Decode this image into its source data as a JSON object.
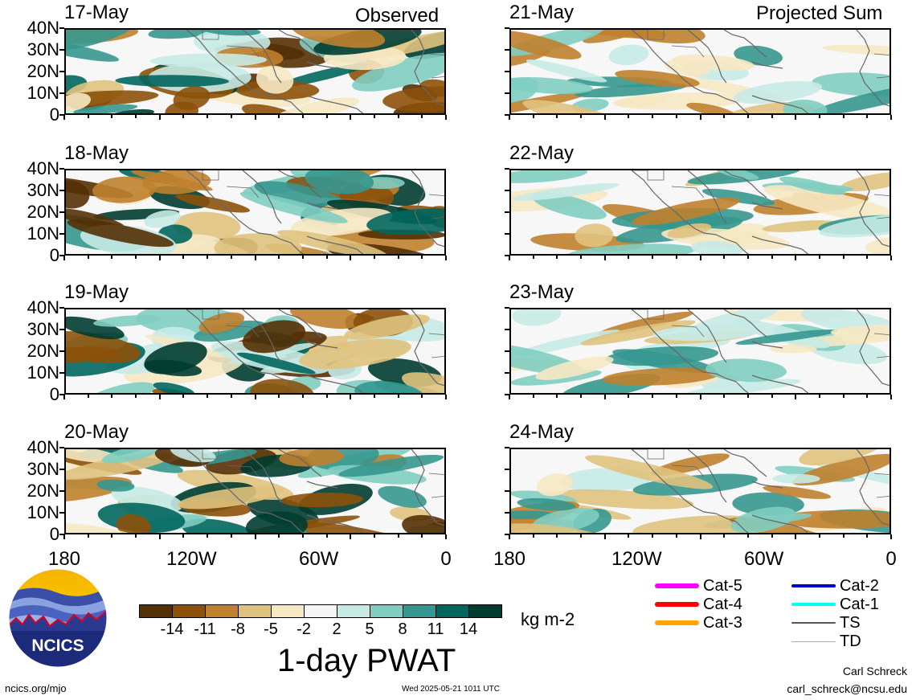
{
  "columns": {
    "left_title": "Observed",
    "right_title": "Projected Sum"
  },
  "panels_left": [
    "17-May",
    "18-May",
    "19-May",
    "20-May"
  ],
  "panels_right": [
    "21-May",
    "22-May",
    "23-May",
    "24-May"
  ],
  "y_ticks": [
    "40N",
    "30N",
    "20N",
    "10N",
    "0"
  ],
  "x_ticks": [
    "180",
    "120W",
    "60W",
    "0"
  ],
  "colorbar": {
    "colors": [
      "#543005",
      "#8c510a",
      "#bf812d",
      "#dfc27d",
      "#f6e8c3",
      "#f5f5f5",
      "#c7eae5",
      "#80cdc1",
      "#35978f",
      "#01665e",
      "#003c30"
    ],
    "labels": [
      "-14",
      "-11",
      "-8",
      "-5",
      "-2",
      "2",
      "5",
      "8",
      "11",
      "14"
    ],
    "units": "kg m-2",
    "title": "1-day PWAT"
  },
  "legend": [
    {
      "label": "Cat-5",
      "color": "#ff00ff"
    },
    {
      "label": "Cat-4",
      "color": "#ff0000"
    },
    {
      "label": "Cat-3",
      "color": "#ffa500"
    },
    {
      "label": "Cat-2",
      "color": "#0000cc"
    },
    {
      "label": "Cat-1",
      "color": "#00ffff"
    },
    {
      "label": "TS",
      "color": "#555555"
    },
    {
      "label": "TD",
      "color": "#aaaaaa"
    }
  ],
  "logo": {
    "text": "NCICS"
  },
  "footer": {
    "url": "ncics.org/mjo",
    "timestamp": "Wed 2025-05-21 1011 UTC",
    "author": "Carl Schreck",
    "email": "carl_schreck@ncsu.edu"
  }
}
